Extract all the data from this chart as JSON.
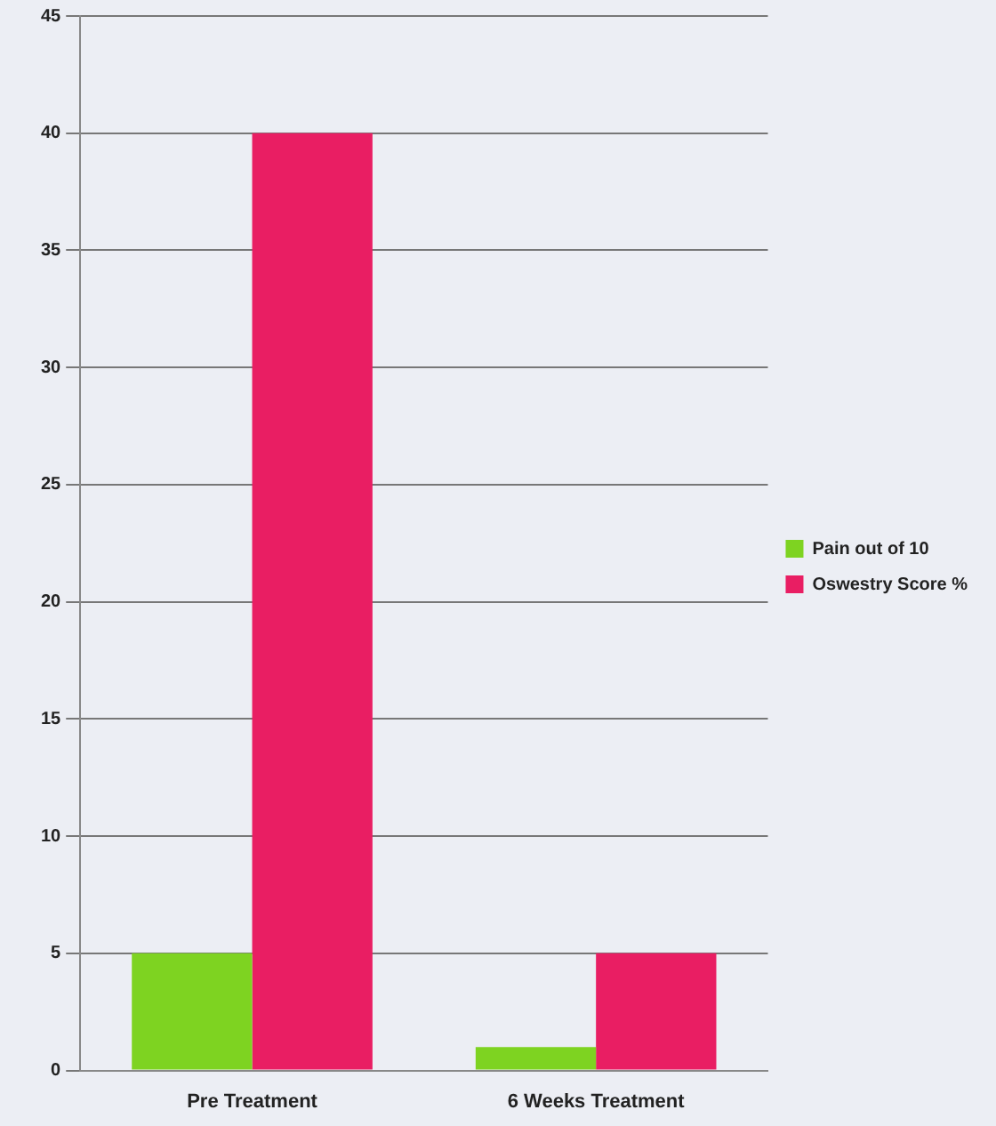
{
  "chart_data": {
    "type": "bar",
    "categories": [
      "Pre Treatment",
      "6 Weeks Treatment"
    ],
    "series": [
      {
        "name": "Pain out of 10",
        "color": "#7ed321",
        "values": [
          5,
          1
        ]
      },
      {
        "name": "Oswestry Score %",
        "color": "#e91e63",
        "values": [
          40,
          5
        ]
      }
    ],
    "ylim": [
      0,
      45
    ],
    "yticks": [
      0,
      5,
      10,
      15,
      20,
      25,
      30,
      35,
      40,
      45
    ],
    "grid": "y",
    "legend": "right"
  }
}
